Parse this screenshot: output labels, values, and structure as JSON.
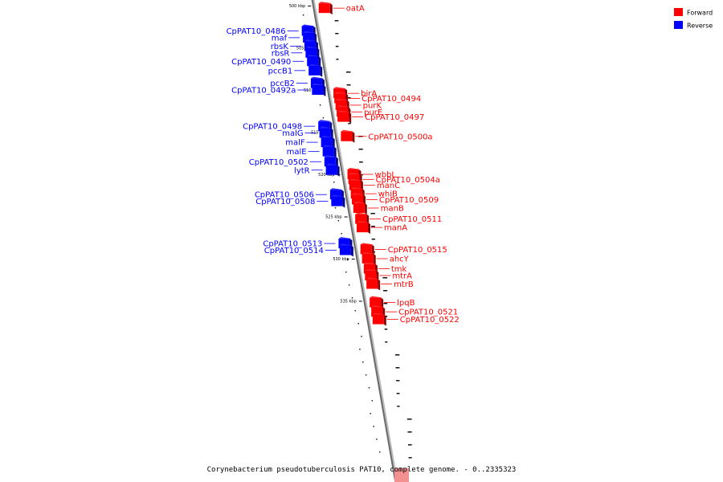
{
  "legend": {
    "forward_label": "Forward",
    "reverse_label": "Reverse",
    "forward_color": "#ff0000",
    "reverse_color": "#0000ff"
  },
  "caption": "Corynebacterium pseudotuberculosis PAT10, complete genome. - 0..2335323",
  "chart_data": {
    "type": "genome-map",
    "ticks": [
      "500 kbp",
      "505 kbp",
      "510 kbp",
      "515 kbp",
      "520 kbp",
      "525 kbp",
      "530 kbp",
      "535 kbp"
    ],
    "genes": [
      {
        "name": "oatA",
        "strand": "forward",
        "pos_kbp": 500.3
      },
      {
        "name": "CpPAT10_0486",
        "strand": "reverse",
        "pos_kbp": 503.0
      },
      {
        "name": "maf",
        "strand": "reverse",
        "pos_kbp": 503.8
      },
      {
        "name": "rbsK",
        "strand": "reverse",
        "pos_kbp": 504.8
      },
      {
        "name": "rbsR",
        "strand": "reverse",
        "pos_kbp": 505.6
      },
      {
        "name": "CpPAT10_0490",
        "strand": "reverse",
        "pos_kbp": 506.6
      },
      {
        "name": "pccB1",
        "strand": "reverse",
        "pos_kbp": 507.7
      },
      {
        "name": "pccB2",
        "strand": "reverse",
        "pos_kbp": 509.2
      },
      {
        "name": "CpPAT10_0492a",
        "strand": "reverse",
        "pos_kbp": 510.0
      },
      {
        "name": "birA",
        "strand": "forward",
        "pos_kbp": 510.4
      },
      {
        "name": "CpPAT10_0494",
        "strand": "forward",
        "pos_kbp": 511.0
      },
      {
        "name": "purK",
        "strand": "forward",
        "pos_kbp": 511.8
      },
      {
        "name": "purE",
        "strand": "forward",
        "pos_kbp": 512.6
      },
      {
        "name": "CpPAT10_0497",
        "strand": "forward",
        "pos_kbp": 513.2
      },
      {
        "name": "CpPAT10_0498",
        "strand": "reverse",
        "pos_kbp": 514.3
      },
      {
        "name": "malG",
        "strand": "reverse",
        "pos_kbp": 515.1
      },
      {
        "name": "CpPAT10_0500a",
        "strand": "forward",
        "pos_kbp": 515.5
      },
      {
        "name": "malF",
        "strand": "reverse",
        "pos_kbp": 516.2
      },
      {
        "name": "malE",
        "strand": "reverse",
        "pos_kbp": 517.3
      },
      {
        "name": "CpPAT10_0502",
        "strand": "reverse",
        "pos_kbp": 518.5
      },
      {
        "name": "lytR",
        "strand": "reverse",
        "pos_kbp": 519.5
      },
      {
        "name": "wbbL",
        "strand": "forward",
        "pos_kbp": 520.0
      },
      {
        "name": "CpPAT10_0504a",
        "strand": "forward",
        "pos_kbp": 520.6
      },
      {
        "name": "manC",
        "strand": "forward",
        "pos_kbp": 521.3
      },
      {
        "name": "whiB",
        "strand": "forward",
        "pos_kbp": 522.3
      },
      {
        "name": "CpPAT10_0506",
        "strand": "reverse",
        "pos_kbp": 522.4
      },
      {
        "name": "CpPAT10_0509",
        "strand": "forward",
        "pos_kbp": 523.0
      },
      {
        "name": "CpPAT10_0508",
        "strand": "reverse",
        "pos_kbp": 523.2
      },
      {
        "name": "manB",
        "strand": "forward",
        "pos_kbp": 524.0
      },
      {
        "name": "CpPAT10_0511",
        "strand": "forward",
        "pos_kbp": 525.3
      },
      {
        "name": "manA",
        "strand": "forward",
        "pos_kbp": 526.3
      },
      {
        "name": "CpPAT10_0513",
        "strand": "reverse",
        "pos_kbp": 528.2
      },
      {
        "name": "CpPAT10_0515",
        "strand": "forward",
        "pos_kbp": 528.9
      },
      {
        "name": "CpPAT10_0514",
        "strand": "reverse",
        "pos_kbp": 529.0
      },
      {
        "name": "ahcY",
        "strand": "forward",
        "pos_kbp": 530.0
      },
      {
        "name": "tmk",
        "strand": "forward",
        "pos_kbp": 531.2
      },
      {
        "name": "mtrA",
        "strand": "forward",
        "pos_kbp": 532.0
      },
      {
        "name": "mtrB",
        "strand": "forward",
        "pos_kbp": 533.0
      },
      {
        "name": "lpqB",
        "strand": "forward",
        "pos_kbp": 535.2
      },
      {
        "name": "CpPAT10_0521",
        "strand": "forward",
        "pos_kbp": 536.3
      },
      {
        "name": "CpPAT10_0522",
        "strand": "forward",
        "pos_kbp": 537.2
      }
    ]
  }
}
